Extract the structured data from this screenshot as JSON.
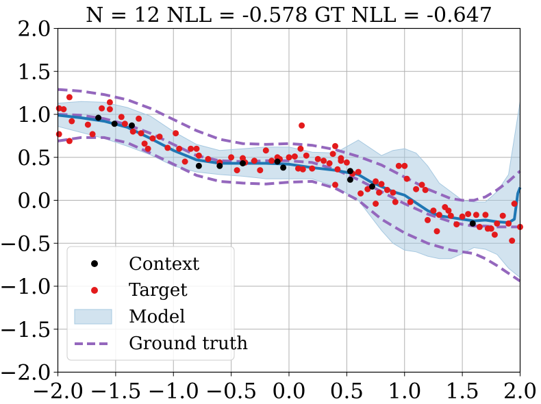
{
  "chart_data": {
    "type": "scatter",
    "title": "N = 12 NLL = -0.578 GT NLL = -0.647",
    "xlabel": "",
    "ylabel": "",
    "xlim": [
      -2.0,
      2.0
    ],
    "ylim": [
      -2.0,
      2.0
    ],
    "grid": true,
    "legend_position": "lower-left",
    "x_ticks": [
      "−2.0",
      "−1.5",
      "−1.0",
      "−0.5",
      "0.0",
      "0.5",
      "1.0",
      "1.5",
      "2.0"
    ],
    "y_ticks": [
      "−2.0",
      "−1.5",
      "−1.0",
      "−0.5",
      "0.0",
      "0.5",
      "1.0",
      "1.5",
      "2.0"
    ],
    "legend": [
      "Context",
      "Target",
      "Model",
      "Ground truth"
    ],
    "colors": {
      "context": "#000000",
      "target": "#e31a1c",
      "model_line": "#1f77b4",
      "model_band": "#a6c8e0",
      "ground_truth": "#9467bd"
    },
    "context_points": [
      [
        -1.65,
        0.96
      ],
      [
        -1.51,
        0.89
      ],
      [
        -1.36,
        0.87
      ],
      [
        -0.78,
        0.4
      ],
      [
        -0.6,
        0.4
      ],
      [
        -0.4,
        0.43
      ],
      [
        -0.1,
        0.45
      ],
      [
        -0.05,
        0.38
      ],
      [
        0.53,
        0.34
      ],
      [
        0.53,
        0.24
      ],
      [
        0.72,
        0.16
      ],
      [
        1.59,
        -0.27
      ]
    ],
    "target_points": [
      [
        -1.99,
        1.07
      ],
      [
        -1.95,
        1.06
      ],
      [
        -1.9,
        1.2
      ],
      [
        -1.88,
        0.92
      ],
      [
        -1.99,
        0.77
      ],
      [
        -1.9,
        0.69
      ],
      [
        -1.74,
        0.88
      ],
      [
        -1.7,
        0.77
      ],
      [
        -1.62,
        1.07
      ],
      [
        -1.55,
        1.06
      ],
      [
        -1.55,
        1.14
      ],
      [
        -1.45,
        0.97
      ],
      [
        -1.42,
        0.89
      ],
      [
        -1.35,
        0.8
      ],
      [
        -1.3,
        0.95
      ],
      [
        -1.28,
        0.78
      ],
      [
        -1.25,
        0.66
      ],
      [
        -1.22,
        0.6
      ],
      [
        -1.18,
        0.72
      ],
      [
        -1.12,
        0.74
      ],
      [
        -1.05,
        0.61
      ],
      [
        -0.98,
        0.78
      ],
      [
        -0.95,
        0.6
      ],
      [
        -0.9,
        0.45
      ],
      [
        -0.85,
        0.6
      ],
      [
        -0.8,
        0.6
      ],
      [
        -0.78,
        0.52
      ],
      [
        -0.7,
        0.48
      ],
      [
        -0.6,
        0.44
      ],
      [
        -0.5,
        0.5
      ],
      [
        -0.45,
        0.35
      ],
      [
        -0.4,
        0.49
      ],
      [
        -0.38,
        0.44
      ],
      [
        -0.3,
        0.46
      ],
      [
        -0.25,
        0.35
      ],
      [
        -0.2,
        0.58
      ],
      [
        -0.15,
        0.46
      ],
      [
        -0.1,
        0.5
      ],
      [
        -0.08,
        0.48
      ],
      [
        0.0,
        0.5
      ],
      [
        0.05,
        0.51
      ],
      [
        0.08,
        0.37
      ],
      [
        0.1,
        0.6
      ],
      [
        0.12,
        0.36
      ],
      [
        0.15,
        0.52
      ],
      [
        0.11,
        0.87
      ],
      [
        0.2,
        0.37
      ],
      [
        0.25,
        0.48
      ],
      [
        0.3,
        0.46
      ],
      [
        0.35,
        0.43
      ],
      [
        0.38,
        0.54
      ],
      [
        0.4,
        0.63
      ],
      [
        0.42,
        0.36
      ],
      [
        0.45,
        0.46
      ],
      [
        0.5,
        0.44
      ],
      [
        0.55,
        0.31
      ],
      [
        0.6,
        0.33
      ],
      [
        0.4,
        0.18
      ],
      [
        0.45,
        0.49
      ],
      [
        0.62,
        0.08
      ],
      [
        0.68,
        0.13
      ],
      [
        0.75,
        0.22
      ],
      [
        0.78,
        0.09
      ],
      [
        0.8,
        0.19
      ],
      [
        0.75,
        -0.04
      ],
      [
        0.85,
        0.12
      ],
      [
        0.9,
        0.09
      ],
      [
        0.92,
        -0.02
      ],
      [
        0.95,
        0.4
      ],
      [
        1.0,
        0.4
      ],
      [
        1.02,
        0.25
      ],
      [
        1.05,
        -0.02
      ],
      [
        1.1,
        0.13
      ],
      [
        1.15,
        0.18
      ],
      [
        1.18,
        0.12
      ],
      [
        1.2,
        -0.23
      ],
      [
        1.25,
        -0.12
      ],
      [
        1.28,
        -0.36
      ],
      [
        1.3,
        -0.17
      ],
      [
        1.35,
        -0.08
      ],
      [
        1.38,
        -0.12
      ],
      [
        1.4,
        -0.18
      ],
      [
        1.45,
        -0.28
      ],
      [
        1.5,
        -0.19
      ],
      [
        1.55,
        -0.16
      ],
      [
        1.62,
        -0.17
      ],
      [
        1.7,
        -0.17
      ],
      [
        1.75,
        -0.33
      ],
      [
        1.78,
        -0.4
      ],
      [
        1.8,
        -0.27
      ],
      [
        1.85,
        -0.18
      ],
      [
        1.9,
        -0.27
      ],
      [
        1.93,
        -0.47
      ],
      [
        1.95,
        -0.04
      ],
      [
        2.0,
        -0.31
      ],
      [
        1.65,
        -0.31
      ],
      [
        1.72,
        -0.33
      ]
    ],
    "model_mean": {
      "x": [
        -2.0,
        -1.8,
        -1.6,
        -1.4,
        -1.2,
        -1.0,
        -0.8,
        -0.6,
        -0.4,
        -0.2,
        0.0,
        0.2,
        0.4,
        0.6,
        0.7,
        0.8,
        0.9,
        1.0,
        1.1,
        1.2,
        1.3,
        1.4,
        1.5,
        1.6,
        1.7,
        1.8,
        1.9,
        1.95,
        1.98,
        2.0
      ],
      "y": [
        0.99,
        0.96,
        0.92,
        0.85,
        0.72,
        0.58,
        0.47,
        0.43,
        0.43,
        0.43,
        0.42,
        0.38,
        0.35,
        0.3,
        0.22,
        0.16,
        0.1,
        0.06,
        -0.03,
        -0.12,
        -0.18,
        -0.2,
        -0.22,
        -0.24,
        -0.23,
        -0.25,
        -0.26,
        -0.22,
        0.08,
        0.15
      ]
    },
    "model_band": {
      "x": [
        -2.0,
        -1.8,
        -1.6,
        -1.4,
        -1.2,
        -1.0,
        -0.8,
        -0.6,
        -0.4,
        -0.2,
        0.0,
        0.2,
        0.4,
        0.6,
        0.8,
        0.9,
        1.0,
        1.1,
        1.2,
        1.3,
        1.4,
        1.5,
        1.6,
        1.7,
        1.8,
        1.9,
        2.0
      ],
      "upper": [
        1.13,
        1.15,
        1.14,
        1.08,
        0.98,
        0.8,
        0.65,
        0.58,
        0.6,
        0.62,
        0.62,
        0.56,
        0.55,
        0.7,
        0.52,
        0.58,
        0.6,
        0.55,
        0.4,
        0.2,
        0.1,
        0.0,
        -0.02,
        -0.02,
        0.1,
        0.3,
        1.15
      ],
      "lower": [
        0.86,
        0.79,
        0.72,
        0.63,
        0.53,
        0.4,
        0.33,
        0.3,
        0.28,
        0.25,
        0.25,
        0.25,
        0.16,
        0.0,
        -0.35,
        -0.5,
        -0.58,
        -0.6,
        -0.65,
        -0.68,
        -0.68,
        -0.62,
        -0.55,
        -0.57,
        -0.63,
        -0.79,
        -0.9
      ]
    },
    "ground_truth": {
      "x": [
        -2.0,
        -1.8,
        -1.6,
        -1.4,
        -1.2,
        -1.0,
        -0.8,
        -0.6,
        -0.4,
        -0.2,
        0.0,
        0.2,
        0.4,
        0.6,
        0.8,
        1.0,
        1.2,
        1.4,
        1.5,
        1.6,
        1.7,
        1.8,
        1.9,
        2.0
      ],
      "mean": [
        1.0,
        0.99,
        0.95,
        0.88,
        0.78,
        0.65,
        0.52,
        0.46,
        0.45,
        0.46,
        0.46,
        0.44,
        0.36,
        0.24,
        0.1,
        -0.04,
        -0.16,
        -0.25,
        -0.28,
        -0.3,
        -0.3,
        -0.31,
        -0.31,
        -0.31
      ],
      "upper": [
        1.29,
        1.27,
        1.23,
        1.17,
        1.07,
        0.94,
        0.81,
        0.71,
        0.66,
        0.65,
        0.66,
        0.64,
        0.59,
        0.51,
        0.41,
        0.27,
        0.13,
        0.02,
        0.0,
        0.0,
        0.04,
        0.12,
        0.22,
        0.34
      ],
      "lower": [
        0.69,
        0.73,
        0.73,
        0.67,
        0.55,
        0.42,
        0.29,
        0.22,
        0.2,
        0.19,
        0.21,
        0.22,
        0.14,
        0.0,
        -0.22,
        -0.38,
        -0.5,
        -0.58,
        -0.6,
        -0.62,
        -0.68,
        -0.76,
        -0.85,
        -0.94
      ]
    }
  }
}
